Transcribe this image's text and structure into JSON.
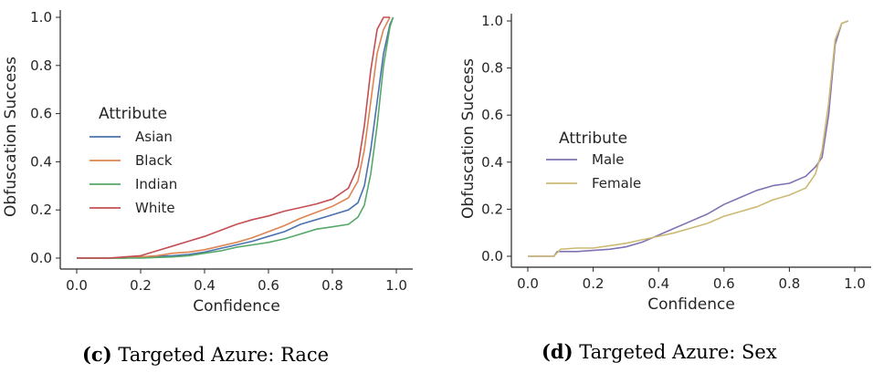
{
  "chart_data": [
    {
      "type": "line",
      "id": "race",
      "xlabel": "Confidence",
      "ylabel": "Obfuscation Success",
      "xlim": [
        0.0,
        1.0
      ],
      "ylim": [
        0.0,
        1.0
      ],
      "xticks": [
        "0.0",
        "0.2",
        "0.4",
        "0.6",
        "0.8",
        "1.0"
      ],
      "yticks": [
        "0.0",
        "0.2",
        "0.4",
        "0.6",
        "0.8",
        "1.0"
      ],
      "grid": false,
      "legend": {
        "title": "Attribute",
        "placement": "center-left"
      },
      "caption": {
        "tag": "(c)",
        "text": " Targeted Azure: Race"
      },
      "series": [
        {
          "name": "Asian",
          "color": "#4c72b0",
          "points": [
            [
              0.0,
              0.0
            ],
            [
              0.15,
              0.0
            ],
            [
              0.2,
              0.005
            ],
            [
              0.3,
              0.01
            ],
            [
              0.35,
              0.015
            ],
            [
              0.4,
              0.025
            ],
            [
              0.45,
              0.04
            ],
            [
              0.5,
              0.055
            ],
            [
              0.55,
              0.07
            ],
            [
              0.6,
              0.09
            ],
            [
              0.65,
              0.11
            ],
            [
              0.7,
              0.14
            ],
            [
              0.75,
              0.16
            ],
            [
              0.8,
              0.18
            ],
            [
              0.85,
              0.2
            ],
            [
              0.88,
              0.23
            ],
            [
              0.9,
              0.3
            ],
            [
              0.92,
              0.45
            ],
            [
              0.94,
              0.65
            ],
            [
              0.96,
              0.85
            ],
            [
              0.98,
              0.97
            ],
            [
              0.99,
              1.0
            ]
          ]
        },
        {
          "name": "Black",
          "color": "#dd8452",
          "points": [
            [
              0.0,
              0.0
            ],
            [
              0.15,
              0.0
            ],
            [
              0.2,
              0.005
            ],
            [
              0.25,
              0.01
            ],
            [
              0.3,
              0.02
            ],
            [
              0.35,
              0.025
            ],
            [
              0.4,
              0.035
            ],
            [
              0.45,
              0.05
            ],
            [
              0.5,
              0.065
            ],
            [
              0.55,
              0.085
            ],
            [
              0.6,
              0.11
            ],
            [
              0.65,
              0.135
            ],
            [
              0.7,
              0.165
            ],
            [
              0.75,
              0.19
            ],
            [
              0.8,
              0.215
            ],
            [
              0.85,
              0.25
            ],
            [
              0.88,
              0.32
            ],
            [
              0.9,
              0.45
            ],
            [
              0.92,
              0.65
            ],
            [
              0.94,
              0.85
            ],
            [
              0.96,
              0.95
            ],
            [
              0.98,
              1.0
            ]
          ]
        },
        {
          "name": "Indian",
          "color": "#55a868",
          "points": [
            [
              0.0,
              0.0
            ],
            [
              0.2,
              0.0
            ],
            [
              0.3,
              0.005
            ],
            [
              0.35,
              0.01
            ],
            [
              0.4,
              0.02
            ],
            [
              0.45,
              0.03
            ],
            [
              0.5,
              0.045
            ],
            [
              0.55,
              0.055
            ],
            [
              0.6,
              0.065
            ],
            [
              0.65,
              0.08
            ],
            [
              0.7,
              0.1
            ],
            [
              0.75,
              0.12
            ],
            [
              0.8,
              0.13
            ],
            [
              0.85,
              0.14
            ],
            [
              0.88,
              0.17
            ],
            [
              0.9,
              0.22
            ],
            [
              0.92,
              0.35
            ],
            [
              0.94,
              0.55
            ],
            [
              0.96,
              0.8
            ],
            [
              0.98,
              0.96
            ],
            [
              0.99,
              1.0
            ]
          ]
        },
        {
          "name": "White",
          "color": "#c44e52",
          "points": [
            [
              0.0,
              0.0
            ],
            [
              0.1,
              0.0
            ],
            [
              0.15,
              0.005
            ],
            [
              0.2,
              0.01
            ],
            [
              0.25,
              0.03
            ],
            [
              0.3,
              0.05
            ],
            [
              0.35,
              0.07
            ],
            [
              0.4,
              0.09
            ],
            [
              0.45,
              0.115
            ],
            [
              0.5,
              0.14
            ],
            [
              0.55,
              0.16
            ],
            [
              0.6,
              0.175
            ],
            [
              0.65,
              0.195
            ],
            [
              0.7,
              0.21
            ],
            [
              0.75,
              0.225
            ],
            [
              0.8,
              0.245
            ],
            [
              0.85,
              0.29
            ],
            [
              0.88,
              0.38
            ],
            [
              0.9,
              0.55
            ],
            [
              0.92,
              0.78
            ],
            [
              0.94,
              0.95
            ],
            [
              0.96,
              1.0
            ],
            [
              0.98,
              1.0
            ]
          ]
        }
      ]
    },
    {
      "type": "line",
      "id": "sex",
      "xlabel": "Confidence",
      "ylabel": "Obfuscation Success",
      "xlim": [
        0.0,
        1.0
      ],
      "ylim": [
        0.0,
        1.0
      ],
      "xticks": [
        "0.0",
        "0.2",
        "0.4",
        "0.6",
        "0.8",
        "1.0"
      ],
      "yticks": [
        "0.0",
        "0.2",
        "0.4",
        "0.6",
        "0.8",
        "1.0"
      ],
      "grid": false,
      "legend": {
        "title": "Attribute",
        "placement": "center-left"
      },
      "caption": {
        "tag": "(d)",
        "text": " Targeted Azure: Sex"
      },
      "series": [
        {
          "name": "Male",
          "color": "#8172b3",
          "points": [
            [
              0.0,
              0.0
            ],
            [
              0.08,
              0.0
            ],
            [
              0.09,
              0.02
            ],
            [
              0.15,
              0.02
            ],
            [
              0.2,
              0.025
            ],
            [
              0.25,
              0.03
            ],
            [
              0.3,
              0.04
            ],
            [
              0.35,
              0.06
            ],
            [
              0.4,
              0.09
            ],
            [
              0.45,
              0.12
            ],
            [
              0.5,
              0.15
            ],
            [
              0.55,
              0.18
            ],
            [
              0.6,
              0.22
            ],
            [
              0.65,
              0.25
            ],
            [
              0.7,
              0.28
            ],
            [
              0.75,
              0.3
            ],
            [
              0.8,
              0.31
            ],
            [
              0.85,
              0.34
            ],
            [
              0.88,
              0.38
            ],
            [
              0.9,
              0.42
            ],
            [
              0.92,
              0.6
            ],
            [
              0.94,
              0.9
            ],
            [
              0.96,
              0.99
            ],
            [
              0.98,
              1.0
            ]
          ]
        },
        {
          "name": "Female",
          "color": "#ccb974",
          "points": [
            [
              0.0,
              0.0
            ],
            [
              0.08,
              0.0
            ],
            [
              0.1,
              0.03
            ],
            [
              0.15,
              0.035
            ],
            [
              0.2,
              0.035
            ],
            [
              0.25,
              0.045
            ],
            [
              0.3,
              0.055
            ],
            [
              0.35,
              0.07
            ],
            [
              0.4,
              0.085
            ],
            [
              0.45,
              0.1
            ],
            [
              0.5,
              0.12
            ],
            [
              0.55,
              0.14
            ],
            [
              0.6,
              0.17
            ],
            [
              0.65,
              0.19
            ],
            [
              0.7,
              0.21
            ],
            [
              0.75,
              0.24
            ],
            [
              0.8,
              0.26
            ],
            [
              0.85,
              0.29
            ],
            [
              0.88,
              0.35
            ],
            [
              0.9,
              0.45
            ],
            [
              0.92,
              0.65
            ],
            [
              0.94,
              0.92
            ],
            [
              0.96,
              0.99
            ],
            [
              0.98,
              1.0
            ]
          ]
        }
      ]
    }
  ]
}
